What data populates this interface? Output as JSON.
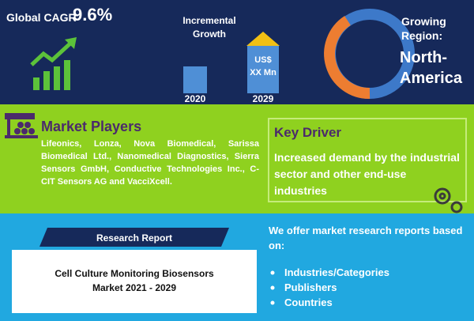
{
  "header": {
    "cagr_label": "Global CAGR",
    "cagr_value": "9.6%",
    "growth_title_lines": [
      "Incremental",
      "Growth"
    ],
    "growth_years": [
      "2020",
      "2029"
    ],
    "growth_value_lines": [
      "US$",
      "XX Mn"
    ],
    "region_label_lines": [
      "Growing",
      "Region:"
    ],
    "region_lines": [
      "North-",
      "America"
    ]
  },
  "market_players": {
    "title": "Market Players",
    "text": "Lifeonics, Lonza, Nova Biomedical, Sarissa Biomedical Ltd., Nanomedical Diagnostics, Sierra Sensors GmbH, Conductive Technologies Inc., C-CIT Sensors AG and VacciXcell."
  },
  "key_driver": {
    "title": "Key Driver",
    "text": "Increased demand by the industrial sector and other end-use industries"
  },
  "report": {
    "banner": "Research Report",
    "title_lines": [
      "Cell Culture Monitoring Biosensors",
      "Market 2021 - 2029"
    ]
  },
  "offer": {
    "intro": "We offer market research reports based on:",
    "items": [
      "Industries/Categories",
      "Publishers",
      "Countries"
    ]
  }
}
